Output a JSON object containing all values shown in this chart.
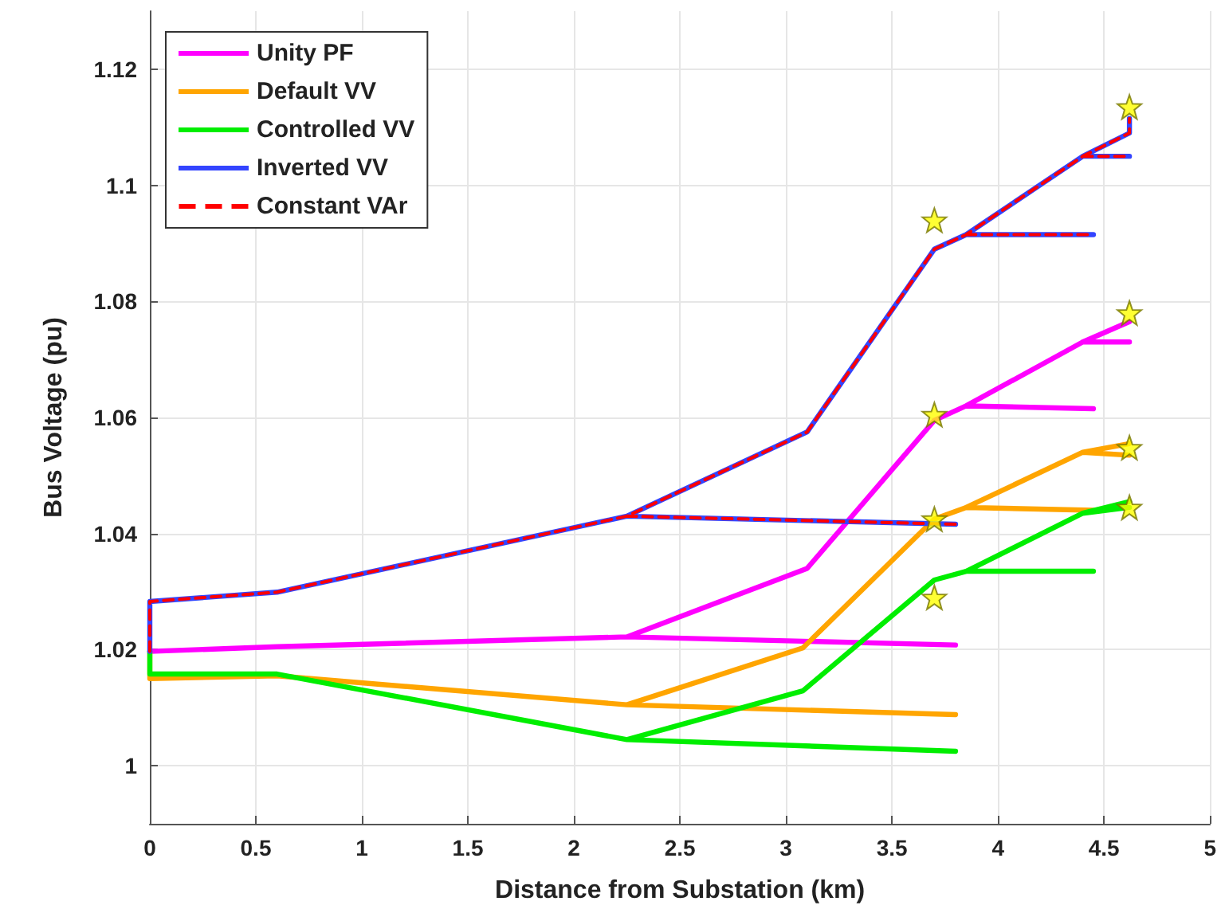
{
  "chart_data": {
    "type": "line",
    "xlabel": "Distance from Substation (km)",
    "ylabel": "Bus Voltage (pu)",
    "xlim": [
      0,
      5
    ],
    "xticks": [
      0,
      0.5,
      1,
      1.5,
      2,
      2.5,
      3,
      3.5,
      4,
      4.5,
      5
    ],
    "ylim": [
      0.99,
      1.13
    ],
    "yticks": [
      1,
      1.02,
      1.04,
      1.06,
      1.08,
      1.1,
      1.12
    ],
    "grid": true,
    "legend": "top left",
    "marker": "none",
    "series": [
      {
        "name": "Unity PF",
        "color": "#ff00ff",
        "line_style": "solid",
        "x": [
          0,
          0,
          0.6,
          2.25,
          3.1,
          3.7,
          3.85,
          4.4,
          4.62,
          null,
          2.25,
          3.8,
          null,
          3.85,
          4.45,
          null,
          4.4,
          4.62
        ],
        "values": [
          1.0197,
          1.0197,
          1.0205,
          1.0222,
          1.034,
          1.0595,
          1.062,
          1.073,
          1.0765,
          null,
          1.0222,
          1.0208,
          null,
          1.062,
          1.0615,
          null,
          1.073,
          1.073
        ]
      },
      {
        "name": "Default VV",
        "color": "#ffa500",
        "line_style": "solid",
        "x": [
          0,
          0,
          0.6,
          2.25,
          3.08,
          3.7,
          3.85,
          4.4,
          4.62,
          null,
          2.25,
          3.8,
          null,
          3.85,
          4.45,
          null,
          4.4,
          4.62
        ],
        "values": [
          1.0197,
          1.015,
          1.0155,
          1.0105,
          1.0203,
          1.0425,
          1.0445,
          1.054,
          1.0555,
          null,
          1.0105,
          1.0088,
          null,
          1.0445,
          1.044,
          null,
          1.054,
          1.0535
        ]
      },
      {
        "name": "Controlled VV",
        "color": "#00ee00",
        "line_style": "solid",
        "x": [
          0,
          0,
          0.6,
          2.25,
          3.08,
          3.7,
          3.85,
          4.4,
          4.62,
          null,
          2.25,
          3.8,
          null,
          3.85,
          4.45,
          null,
          4.4,
          4.62
        ],
        "values": [
          1.0197,
          1.0158,
          1.0158,
          1.0045,
          1.0129,
          1.032,
          1.0335,
          1.0435,
          1.0455,
          null,
          1.0045,
          1.0025,
          null,
          1.0335,
          1.0335,
          null,
          1.0435,
          1.0445
        ]
      },
      {
        "name": "Inverted VV",
        "color": "#3344ff",
        "line_style": "solid",
        "x": [
          0,
          0,
          0.6,
          2.25,
          3.1,
          3.7,
          3.85,
          4.4,
          4.62,
          4.62,
          null,
          2.25,
          3.8,
          null,
          3.85,
          4.45,
          null,
          4.4,
          4.62
        ],
        "values": [
          1.0197,
          1.0283,
          1.0299,
          1.043,
          1.0575,
          1.089,
          1.0915,
          1.105,
          1.109,
          1.1115,
          null,
          1.043,
          1.0416,
          null,
          1.0915,
          1.0915,
          null,
          1.105,
          1.105
        ]
      },
      {
        "name": "Constant VAr",
        "color": "#ff0000",
        "line_style": "dashed",
        "x": [
          0,
          0,
          0.6,
          2.25,
          3.1,
          3.7,
          3.85,
          4.4,
          4.62,
          4.62,
          null,
          2.25,
          3.8,
          null,
          3.85,
          4.45,
          null,
          4.4,
          4.62
        ],
        "values": [
          1.0197,
          1.0283,
          1.0299,
          1.043,
          1.0575,
          1.089,
          1.0915,
          1.105,
          1.109,
          1.1115,
          null,
          1.043,
          1.0416,
          null,
          1.0915,
          1.0915,
          null,
          1.105,
          1.105
        ]
      },
      {
        "type": "scatter",
        "marker": "star",
        "color": "#ffff00",
        "x": [
          3.7,
          4.62,
          3.7,
          4.62,
          3.7,
          4.62,
          3.7,
          4.62
        ],
        "values": [
          1.094,
          1.1135,
          1.0605,
          1.078,
          1.0425,
          1.0548,
          1.029,
          1.0445
        ]
      }
    ]
  }
}
